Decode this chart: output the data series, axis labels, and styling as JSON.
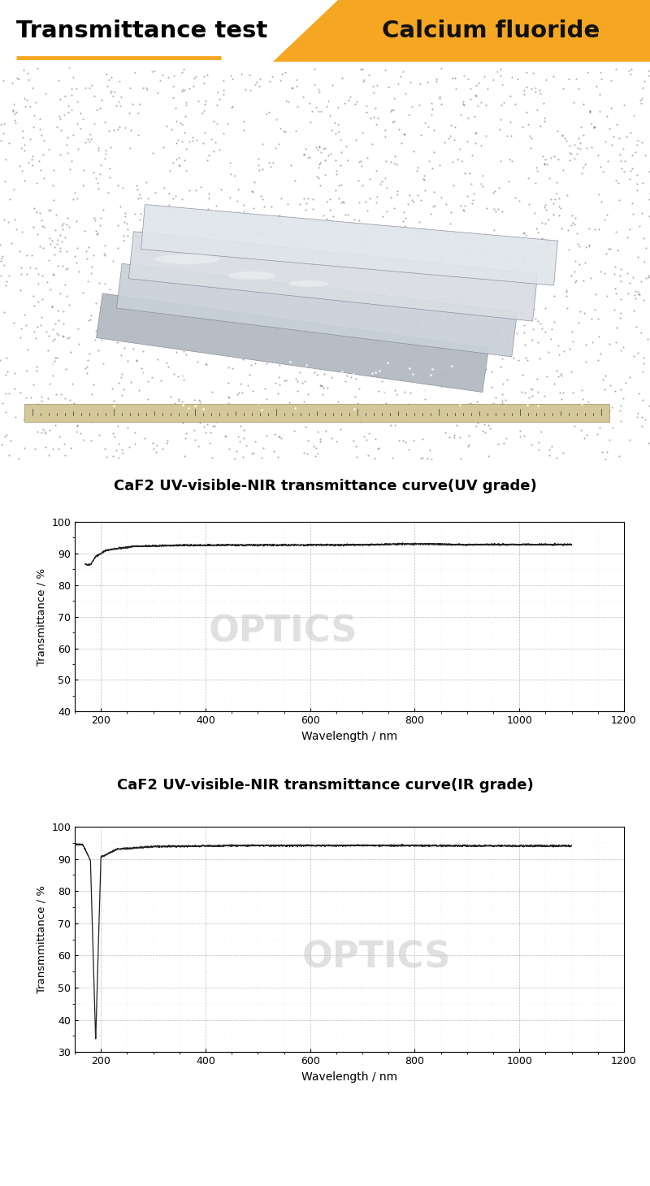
{
  "title_left": "Transmittance test",
  "title_right": "Calcium fluoride",
  "header_bg_color": "#F5A623",
  "header_text_color_left": "#000000",
  "header_text_color_right": "#111111",
  "underline_color": "#F5A623",
  "chart1_title": "CaF2 UV-visible-NIR transmittance curve(UV grade)",
  "chart2_title": "CaF2 UV-visible-NIR transmittance curve(IR grade)",
  "xlabel": "Wavelength / nm",
  "ylabel1": "Transmittance / %",
  "ylabel2": "Transmmittance / %",
  "chart1_xlim": [
    150,
    1200
  ],
  "chart1_ylim": [
    40,
    100
  ],
  "chart2_xlim": [
    150,
    1200
  ],
  "chart2_ylim": [
    30,
    100
  ],
  "chart1_yticks": [
    40,
    50,
    60,
    70,
    80,
    90,
    100
  ],
  "chart2_yticks": [
    30,
    40,
    50,
    60,
    70,
    80,
    90,
    100
  ],
  "chart1_xticks": [
    200,
    400,
    600,
    800,
    1000,
    1200
  ],
  "chart2_xticks": [
    200,
    400,
    600,
    800,
    1000,
    1200
  ],
  "grid_color": "#aaaaaa",
  "grid_style": "--",
  "curve_color": "#222222",
  "bg_color": "#ffffff",
  "photo_bg": "#1a1a1a",
  "crystal_color": "#d8d8d8",
  "ruler_color": "#c8b88a",
  "separator_color": "#333333"
}
